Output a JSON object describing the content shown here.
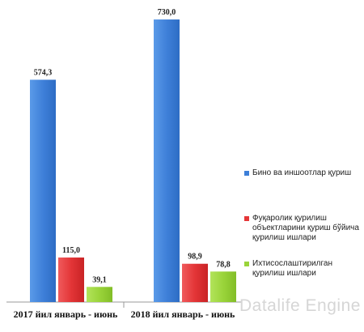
{
  "chart_data": {
    "type": "bar",
    "categories": [
      "2017 йил январь - июнь",
      "2018 йил январь - июнь"
    ],
    "series": [
      {
        "name": "Бино ва иншоотлар қуриш",
        "values": [
          574.3,
          730.0
        ],
        "labels": [
          "574,3",
          "730,0"
        ],
        "color": "#3d7fd8"
      },
      {
        "name": "Фуқаролик қурилиш объектларини қуриш бўйича қурилиш ишлари",
        "values": [
          115.0,
          98.9
        ],
        "labels": [
          "115,0",
          "98,9"
        ],
        "color": "#e53638"
      },
      {
        "name": "Ихтисослаштирилган қурилиш ишлари",
        "values": [
          39.1,
          78.8
        ],
        "labels": [
          "39,1",
          "78,8"
        ],
        "color": "#9ad43a"
      }
    ],
    "legend_position": "right",
    "grid": false
  },
  "watermark": "Datalife Engine"
}
